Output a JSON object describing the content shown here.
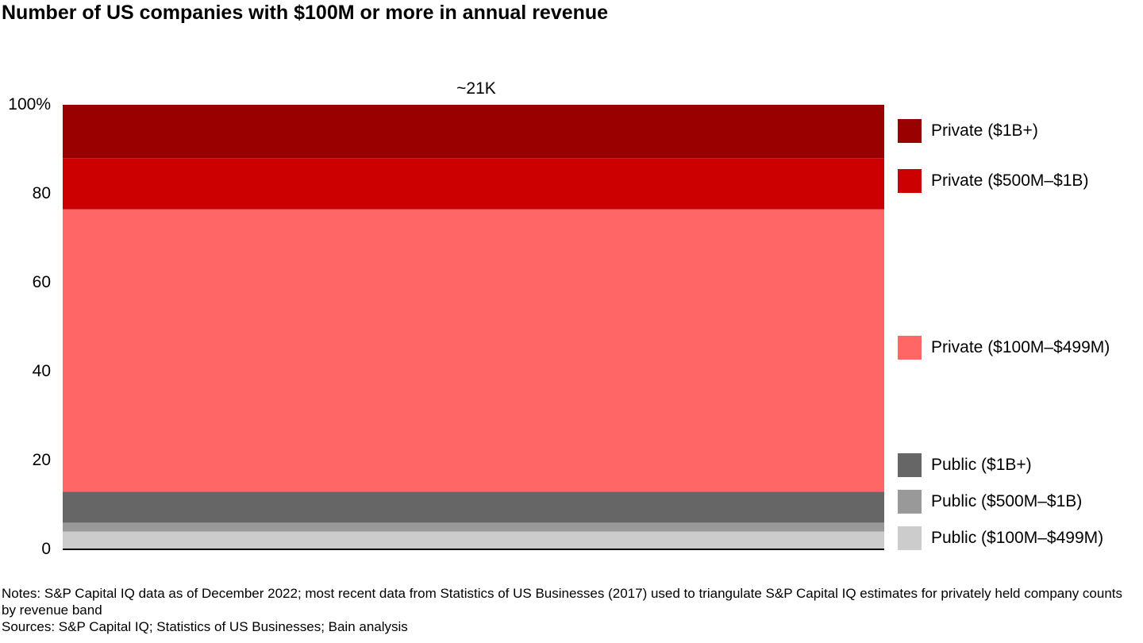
{
  "title": "Number of US companies with $100M or more in annual revenue",
  "colors": {
    "private_1b": "#990000",
    "private_500m_1b": "#cc0000",
    "private_100m_499m": "#ff6666",
    "public_1b": "#666666",
    "public_500m_1b": "#999999",
    "public_100m_499m": "#cccccc"
  },
  "chart_data": {
    "type": "bar",
    "stacked": true,
    "categories": [
      ""
    ],
    "bar_total_label": "~21K",
    "ylim": [
      0,
      100
    ],
    "yticks": [
      "0",
      "20",
      "40",
      "60",
      "80",
      "100%"
    ],
    "series": [
      {
        "name": "Public ($100M–$499M)",
        "values": [
          4
        ],
        "color": "#cccccc"
      },
      {
        "name": "Public ($500M–$1B)",
        "values": [
          2
        ],
        "color": "#999999"
      },
      {
        "name": "Public ($1B+)",
        "values": [
          7
        ],
        "color": "#666666"
      },
      {
        "name": "Private ($100M–$499M)",
        "values": [
          63.5
        ],
        "color": "#ff6666"
      },
      {
        "name": "Private ($500M–$1B)",
        "values": [
          11.5
        ],
        "color": "#cc0000"
      },
      {
        "name": "Private ($1B+)",
        "values": [
          12
        ],
        "color": "#990000"
      }
    ],
    "legend_placement": "right",
    "grid": false
  },
  "notes": "Notes: S&P Capital IQ data as of December 2022; most recent data from Statistics of US Businesses (2017) used to triangulate S&P Capital IQ estimates for privately held company counts by revenue band",
  "sources": "Sources: S&P Capital IQ; Statistics of US Businesses; Bain analysis"
}
